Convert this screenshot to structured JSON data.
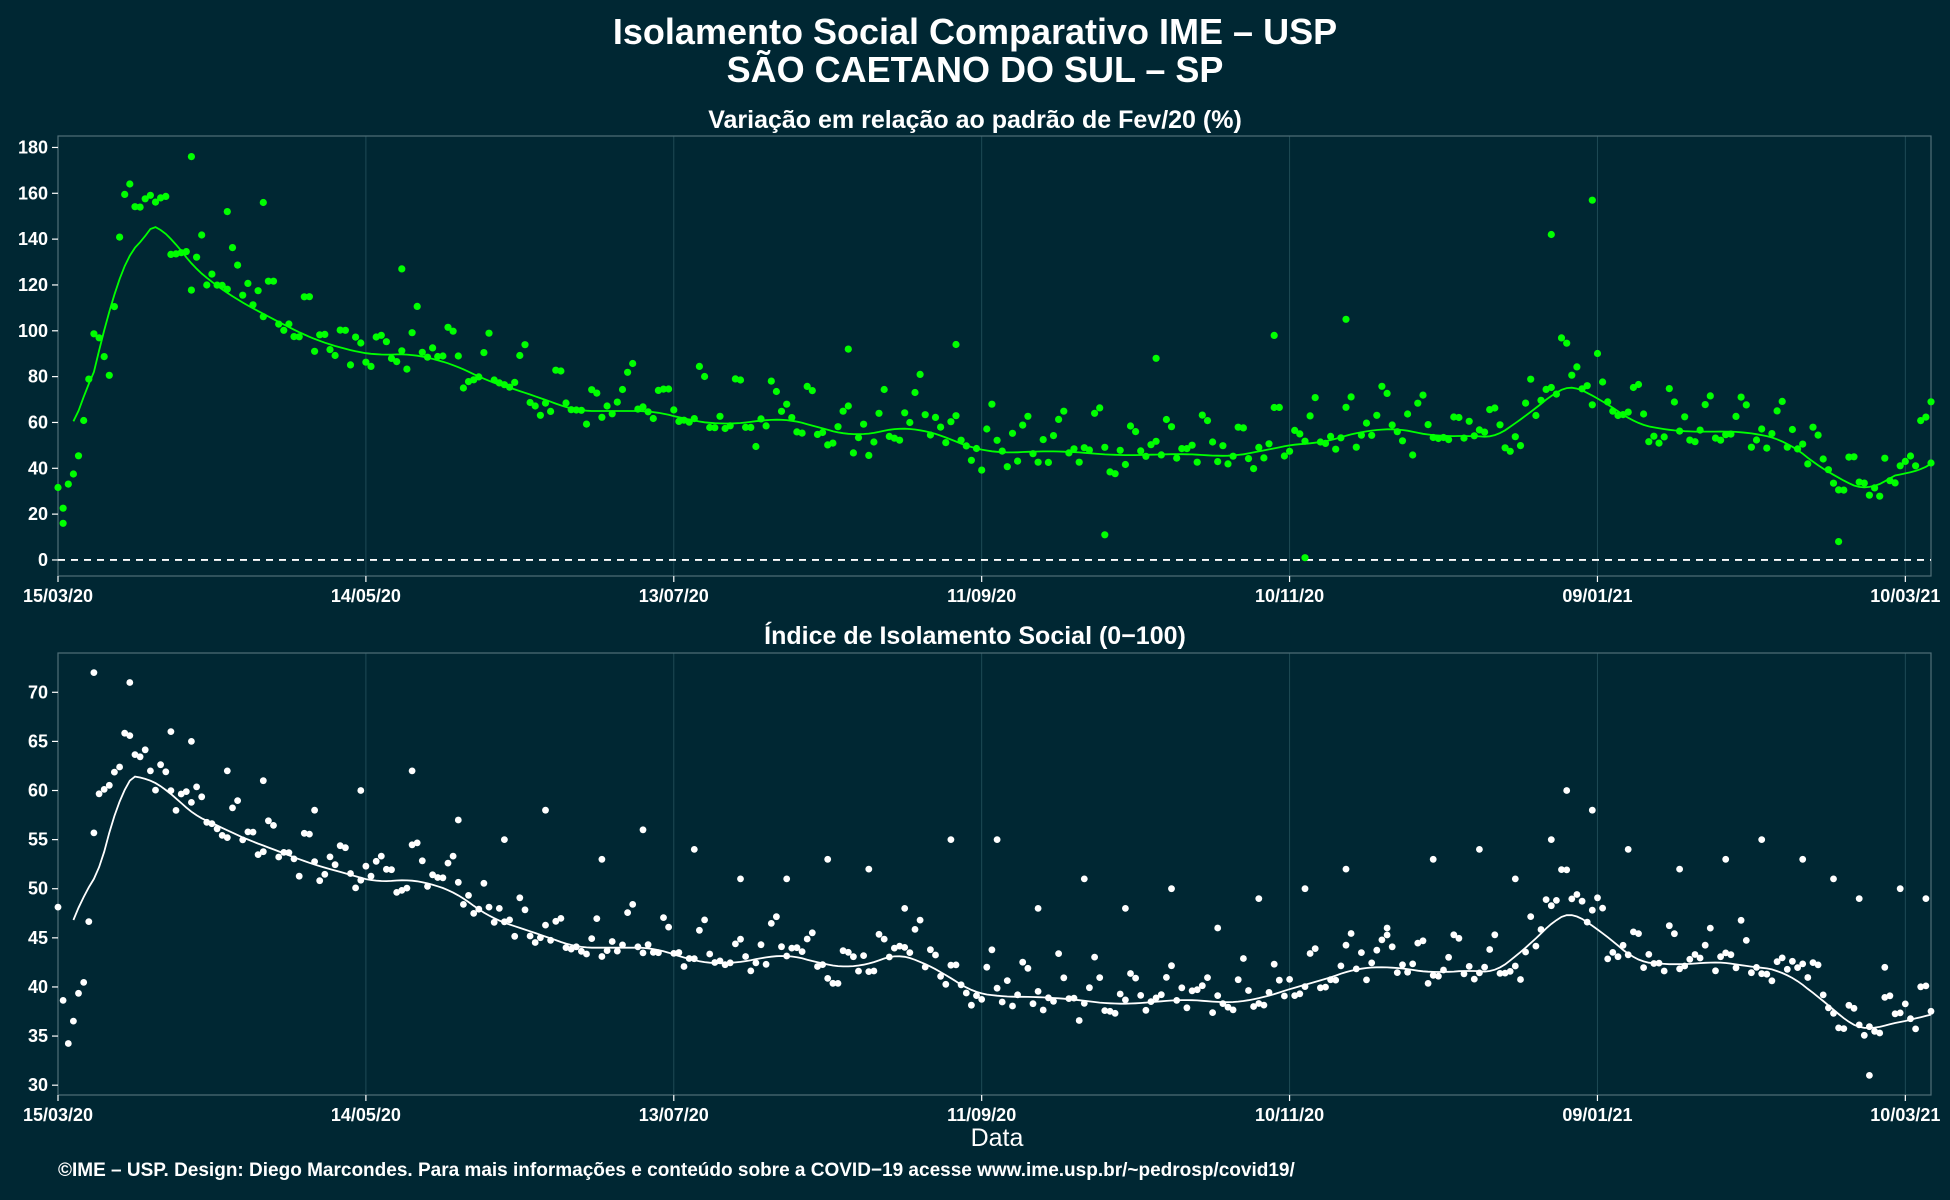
{
  "header": {
    "title_line1": "Isolamento Social Comparativo IME – USP",
    "title_line2": "SÃO CAETANO DO SUL – SP"
  },
  "footer": {
    "credit": "©IME – USP. Design: Diego Marcondes. Para mais informações e conteúdo sobre a COVID−19 acesse www.ime.usp.br/~pedrosp/covid19/"
  },
  "colors": {
    "background": "#002733",
    "panel_border": "#4f6f78",
    "grid": "#1e4a55",
    "green_series": "#00ff00",
    "white_series": "#ffffff"
  },
  "chart_data": [
    {
      "type": "scatter",
      "title": "Variação em relação ao padrão de Fev/20 (%)",
      "x_range": [
        "2020-03-15",
        "2021-03-15"
      ],
      "ylim": [
        -7,
        185
      ],
      "yticks": [
        "0",
        "20",
        "40",
        "60",
        "80",
        "100",
        "120",
        "140",
        "160",
        "180"
      ],
      "xtick_labels": [
        "15/03/20",
        "14/05/20",
        "13/07/20",
        "11/09/20",
        "10/11/20",
        "09/01/21",
        "10/03/21"
      ],
      "xtick_dates": [
        "2020-03-15",
        "2020-05-14",
        "2020-07-13",
        "2020-09-11",
        "2020-11-10",
        "2021-01-09",
        "2021-03-10"
      ],
      "reference_line": 0,
      "point_color": "#00ff00",
      "line_color": "#00ff00",
      "anchors": [
        [
          "2020-03-15",
          16
        ],
        [
          "2020-03-17",
          38
        ],
        [
          "2020-03-19",
          48
        ],
        [
          "2020-03-21",
          72
        ],
        [
          "2020-03-23",
          99
        ],
        [
          "2020-03-25",
          85
        ],
        [
          "2020-03-27",
          145
        ],
        [
          "2020-03-29",
          155
        ],
        [
          "2020-04-01",
          160
        ],
        [
          "2020-04-05",
          140
        ],
        [
          "2020-04-10",
          128
        ],
        [
          "2020-04-15",
          118
        ],
        [
          "2020-04-22",
          110
        ],
        [
          "2020-04-30",
          100
        ],
        [
          "2020-05-07",
          93
        ],
        [
          "2020-05-14",
          90
        ],
        [
          "2020-05-20",
          88
        ],
        [
          "2020-05-27",
          92
        ],
        [
          "2020-06-03",
          80
        ],
        [
          "2020-06-12",
          75
        ],
        [
          "2020-06-20",
          68
        ],
        [
          "2020-06-28",
          62
        ],
        [
          "2020-07-05",
          68
        ],
        [
          "2020-07-13",
          62
        ],
        [
          "2020-07-25",
          58
        ],
        [
          "2020-08-05",
          64
        ],
        [
          "2020-08-15",
          52
        ],
        [
          "2020-08-22",
          56
        ],
        [
          "2020-08-30",
          60
        ],
        [
          "2020-09-05",
          52
        ],
        [
          "2020-09-11",
          46
        ],
        [
          "2020-09-25",
          48
        ],
        [
          "2020-10-10",
          45
        ],
        [
          "2020-10-20",
          47
        ],
        [
          "2020-11-01",
          44
        ],
        [
          "2020-11-10",
          52
        ],
        [
          "2020-11-20",
          50
        ],
        [
          "2020-11-27",
          62
        ],
        [
          "2020-12-05",
          53
        ],
        [
          "2020-12-15",
          55
        ],
        [
          "2020-12-25",
          52
        ],
        [
          "2020-12-30",
          78
        ],
        [
          "2021-01-06",
          80
        ],
        [
          "2021-01-12",
          62
        ],
        [
          "2021-01-25",
          55
        ],
        [
          "2021-02-05",
          57
        ],
        [
          "2021-02-12",
          54
        ],
        [
          "2021-02-18",
          50
        ],
        [
          "2021-02-22",
          40
        ],
        [
          "2021-02-26",
          28
        ],
        [
          "2021-03-03",
          32
        ],
        [
          "2021-03-07",
          30
        ],
        [
          "2021-03-10",
          40
        ],
        [
          "2021-03-12",
          43
        ],
        [
          "2021-03-14",
          48
        ]
      ],
      "outliers": [
        [
          "2020-03-16",
          16
        ],
        [
          "2020-04-10",
          176
        ],
        [
          "2020-04-17",
          152
        ],
        [
          "2020-04-24",
          156
        ],
        [
          "2020-05-21",
          127
        ],
        [
          "2020-08-16",
          92
        ],
        [
          "2020-09-06",
          94
        ],
        [
          "2020-10-15",
          88
        ],
        [
          "2020-10-05",
          11
        ],
        [
          "2020-11-07",
          98
        ],
        [
          "2020-11-13",
          1
        ],
        [
          "2020-11-21",
          105
        ],
        [
          "2020-12-31",
          142
        ],
        [
          "2021-01-08",
          157
        ],
        [
          "2021-02-25",
          8
        ],
        [
          "2021-03-15",
          69
        ]
      ],
      "smooth_window": 7
    },
    {
      "type": "scatter",
      "title": "Índice de Isolamento Social (0−100)",
      "xlabel": "Data",
      "x_range": [
        "2020-03-15",
        "2021-03-15"
      ],
      "ylim": [
        29,
        74
      ],
      "yticks": [
        "30",
        "35",
        "40",
        "45",
        "50",
        "55",
        "60",
        "65",
        "70"
      ],
      "xtick_labels": [
        "15/03/20",
        "14/05/20",
        "13/07/20",
        "11/09/20",
        "10/11/20",
        "09/01/21",
        "10/03/21"
      ],
      "xtick_dates": [
        "2020-03-15",
        "2020-05-14",
        "2020-07-13",
        "2020-09-11",
        "2020-11-10",
        "2021-01-09",
        "2021-03-10"
      ],
      "point_color": "#ffffff",
      "line_color": "#ffffff",
      "anchors": [
        [
          "2020-03-15",
          45
        ],
        [
          "2020-03-17",
          34
        ],
        [
          "2020-03-19",
          39
        ],
        [
          "2020-03-21",
          45
        ],
        [
          "2020-03-23",
          60
        ],
        [
          "2020-03-25",
          61
        ],
        [
          "2020-03-28",
          63
        ],
        [
          "2020-04-01",
          63
        ],
        [
          "2020-04-05",
          59
        ],
        [
          "2020-04-10",
          58
        ],
        [
          "2020-04-15",
          56
        ],
        [
          "2020-04-22",
          55
        ],
        [
          "2020-04-30",
          53
        ],
        [
          "2020-05-07",
          52
        ],
        [
          "2020-05-14",
          51
        ],
        [
          "2020-05-20",
          50
        ],
        [
          "2020-05-27",
          52
        ],
        [
          "2020-06-03",
          48
        ],
        [
          "2020-06-12",
          46
        ],
        [
          "2020-06-20",
          45
        ],
        [
          "2020-06-28",
          43
        ],
        [
          "2020-07-05",
          45
        ],
        [
          "2020-07-13",
          43
        ],
        [
          "2020-07-25",
          42
        ],
        [
          "2020-08-05",
          44
        ],
        [
          "2020-08-15",
          41
        ],
        [
          "2020-08-22",
          43
        ],
        [
          "2020-08-30",
          44
        ],
        [
          "2020-09-05",
          40
        ],
        [
          "2020-09-11",
          39
        ],
        [
          "2020-09-25",
          39
        ],
        [
          "2020-10-10",
          38
        ],
        [
          "2020-10-20",
          39
        ],
        [
          "2020-11-01",
          38
        ],
        [
          "2020-11-10",
          40
        ],
        [
          "2020-11-20",
          41
        ],
        [
          "2020-11-27",
          43
        ],
        [
          "2020-12-05",
          41
        ],
        [
          "2020-12-15",
          42
        ],
        [
          "2020-12-25",
          41
        ],
        [
          "2020-12-30",
          48
        ],
        [
          "2021-01-06",
          49
        ],
        [
          "2021-01-12",
          43
        ],
        [
          "2021-01-25",
          42
        ],
        [
          "2021-02-05",
          43
        ],
        [
          "2021-02-12",
          41
        ],
        [
          "2021-02-18",
          42
        ],
        [
          "2021-02-22",
          39
        ],
        [
          "2021-02-26",
          35
        ],
        [
          "2021-03-03",
          35
        ],
        [
          "2021-03-07",
          36
        ],
        [
          "2021-03-10",
          38
        ],
        [
          "2021-03-12",
          37
        ],
        [
          "2021-03-14",
          37
        ]
      ],
      "outliers": [
        [
          "2020-03-22",
          72
        ],
        [
          "2020-03-29",
          71
        ],
        [
          "2020-04-06",
          66
        ],
        [
          "2020-04-10",
          65
        ],
        [
          "2020-04-17",
          62
        ],
        [
          "2020-04-24",
          61
        ],
        [
          "2020-05-04",
          58
        ],
        [
          "2020-05-13",
          60
        ],
        [
          "2020-05-23",
          62
        ],
        [
          "2020-06-01",
          57
        ],
        [
          "2020-06-10",
          55
        ],
        [
          "2020-06-18",
          58
        ],
        [
          "2020-06-29",
          53
        ],
        [
          "2020-07-07",
          56
        ],
        [
          "2020-07-17",
          54
        ],
        [
          "2020-07-26",
          51
        ],
        [
          "2020-08-04",
          51
        ],
        [
          "2020-08-12",
          53
        ],
        [
          "2020-08-20",
          52
        ],
        [
          "2020-08-27",
          48
        ],
        [
          "2020-09-05",
          55
        ],
        [
          "2020-09-14",
          55
        ],
        [
          "2020-09-22",
          48
        ],
        [
          "2020-10-01",
          51
        ],
        [
          "2020-10-09",
          48
        ],
        [
          "2020-10-18",
          50
        ],
        [
          "2020-10-27",
          46
        ],
        [
          "2020-11-04",
          49
        ],
        [
          "2020-11-13",
          50
        ],
        [
          "2020-11-21",
          52
        ],
        [
          "2020-11-29",
          46
        ],
        [
          "2020-12-08",
          53
        ],
        [
          "2020-12-17",
          54
        ],
        [
          "2020-12-24",
          51
        ],
        [
          "2020-12-31",
          55
        ],
        [
          "2021-01-03",
          60
        ],
        [
          "2021-01-08",
          58
        ],
        [
          "2021-01-15",
          54
        ],
        [
          "2021-01-25",
          52
        ],
        [
          "2021-02-03",
          53
        ],
        [
          "2021-02-10",
          55
        ],
        [
          "2021-02-18",
          53
        ],
        [
          "2021-02-24",
          51
        ],
        [
          "2021-03-01",
          49
        ],
        [
          "2021-03-06",
          42
        ],
        [
          "2021-03-09",
          50
        ],
        [
          "2021-03-14",
          49
        ],
        [
          "2021-03-03",
          31
        ]
      ],
      "smooth_window": 7
    }
  ]
}
